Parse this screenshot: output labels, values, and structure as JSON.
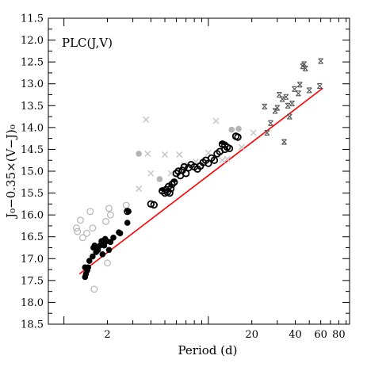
{
  "chart_data": {
    "type": "scatter",
    "title": "PLC(J,V)",
    "xlabel": "Period (d)",
    "ylabel": "J₀−0.35×(V−J)₀",
    "x_scale": "log",
    "xlim": [
      0.78,
      95
    ],
    "ylim": [
      18.5,
      11.5
    ],
    "y_inverted": true,
    "xticks": [
      2,
      20,
      40,
      60,
      80
    ],
    "xtick_labels": [
      "2",
      "20",
      "40",
      "60",
      "80"
    ],
    "yticks": [
      11.5,
      12.0,
      12.5,
      13.0,
      13.5,
      14.0,
      14.5,
      15.0,
      15.5,
      16.0,
      16.5,
      17.0,
      17.5,
      18.0,
      18.5
    ],
    "ytick_labels": [
      "11.5",
      "12.0",
      "12.5",
      "13.0",
      "13.5",
      "14.0",
      "14.5",
      "15.0",
      "15.5",
      "16.0",
      "16.5",
      "17.0",
      "17.5",
      "18.0",
      "18.5"
    ],
    "colors": {
      "fit_line": "#ff0000",
      "black": "#000000",
      "gray": "#b4b4b4",
      "light_gray": "#c8c8c8"
    },
    "fit_line": {
      "x": [
        1.28,
        62
      ],
      "y": [
        17.35,
        13.1
      ]
    },
    "series": [
      {
        "marker": "filled-circle-black",
        "points": [
          [
            1.4,
            17.42
          ],
          [
            1.42,
            17.35
          ],
          [
            1.45,
            17.27
          ],
          [
            1.47,
            17.2
          ],
          [
            1.4,
            17.2
          ],
          [
            1.5,
            17.05
          ],
          [
            1.58,
            16.95
          ],
          [
            1.6,
            16.75
          ],
          [
            1.63,
            16.7
          ],
          [
            1.67,
            16.85
          ],
          [
            1.72,
            16.8
          ],
          [
            1.78,
            16.7
          ],
          [
            1.82,
            16.6
          ],
          [
            1.85,
            16.9
          ],
          [
            1.9,
            16.7
          ],
          [
            1.93,
            16.55
          ],
          [
            1.98,
            16.6
          ],
          [
            2.05,
            16.8
          ],
          [
            2.1,
            16.62
          ],
          [
            2.2,
            16.52
          ],
          [
            2.4,
            16.4
          ],
          [
            2.45,
            16.42
          ],
          [
            2.75,
            16.18
          ],
          [
            2.8,
            15.92
          ]
        ]
      },
      {
        "marker": "open-circle-black",
        "points": [
          [
            4.0,
            15.75
          ],
          [
            4.2,
            15.77
          ],
          [
            4.8,
            15.45
          ],
          [
            5.0,
            15.5
          ],
          [
            5.1,
            15.42
          ],
          [
            5.2,
            15.48
          ],
          [
            5.3,
            15.35
          ],
          [
            5.4,
            15.5
          ],
          [
            5.5,
            15.4
          ],
          [
            5.6,
            15.3
          ],
          [
            5.8,
            15.25
          ],
          [
            6.0,
            15.05
          ],
          [
            6.2,
            15.0
          ],
          [
            6.4,
            15.1
          ],
          [
            6.6,
            14.98
          ],
          [
            6.8,
            14.9
          ],
          [
            7.0,
            15.05
          ],
          [
            7.3,
            14.92
          ],
          [
            7.6,
            14.85
          ],
          [
            8.0,
            14.9
          ],
          [
            8.4,
            14.95
          ],
          [
            8.8,
            14.88
          ],
          [
            9.2,
            14.8
          ],
          [
            9.6,
            14.75
          ],
          [
            10.0,
            14.82
          ],
          [
            10.5,
            14.7
          ],
          [
            11.0,
            14.75
          ],
          [
            11.5,
            14.6
          ],
          [
            12.0,
            14.55
          ],
          [
            12.5,
            14.38
          ],
          [
            13.0,
            14.5
          ],
          [
            13.5,
            14.45
          ],
          [
            14.0,
            14.48
          ],
          [
            15.5,
            14.2
          ],
          [
            16.0,
            14.22
          ]
        ]
      },
      {
        "marker": "half-filled-circle",
        "points": [
          [
            2.75,
            15.92
          ],
          [
            4.8,
            15.45
          ],
          [
            5.8,
            15.25
          ],
          [
            12.5,
            14.38
          ],
          [
            13.0,
            14.4
          ]
        ]
      },
      {
        "marker": "filled-circle-gray",
        "points": [
          [
            3.3,
            14.6
          ],
          [
            4.6,
            15.18
          ],
          [
            14.5,
            14.05
          ],
          [
            16.2,
            14.03
          ]
        ]
      },
      {
        "marker": "open-circle-gray",
        "points": [
          [
            1.22,
            16.3
          ],
          [
            1.24,
            16.38
          ],
          [
            1.3,
            16.12
          ],
          [
            1.35,
            16.52
          ],
          [
            1.44,
            16.42
          ],
          [
            1.52,
            15.92
          ],
          [
            1.58,
            16.3
          ],
          [
            1.62,
            17.7
          ],
          [
            1.7,
            16.75
          ],
          [
            1.95,
            16.15
          ],
          [
            2.0,
            17.1
          ],
          [
            2.05,
            15.85
          ],
          [
            2.1,
            16.0
          ],
          [
            2.7,
            15.78
          ]
        ]
      },
      {
        "marker": "x-gray",
        "points": [
          [
            3.3,
            15.4
          ],
          [
            3.7,
            13.82
          ],
          [
            3.8,
            14.6
          ],
          [
            4.0,
            15.05
          ],
          [
            5.0,
            14.62
          ],
          [
            5.5,
            15.05
          ],
          [
            6.3,
            14.62
          ],
          [
            6.8,
            14.85
          ],
          [
            8.2,
            14.78
          ],
          [
            10.0,
            14.58
          ],
          [
            11.3,
            13.85
          ],
          [
            12.5,
            14.75
          ],
          [
            13.5,
            14.72
          ],
          [
            17.0,
            14.45
          ],
          [
            20.5,
            14.12
          ]
        ]
      },
      {
        "marker": "x-boxed",
        "points": [
          [
            24.5,
            13.52
          ],
          [
            25.5,
            14.12
          ],
          [
            27.0,
            13.9
          ],
          [
            29.0,
            13.62
          ],
          [
            30.0,
            13.55
          ],
          [
            31.0,
            13.25
          ],
          [
            32.5,
            13.35
          ],
          [
            33.5,
            14.33
          ],
          [
            34.5,
            13.3
          ],
          [
            35.5,
            13.5
          ],
          [
            36.5,
            13.75
          ],
          [
            38.0,
            13.45
          ],
          [
            39.5,
            13.12
          ],
          [
            42.0,
            13.22
          ],
          [
            43.0,
            13.02
          ],
          [
            45.0,
            12.6
          ],
          [
            46.0,
            12.55
          ],
          [
            47.0,
            12.65
          ],
          [
            50.0,
            13.15
          ],
          [
            59.0,
            13.05
          ],
          [
            60.0,
            12.48
          ]
        ]
      }
    ]
  }
}
